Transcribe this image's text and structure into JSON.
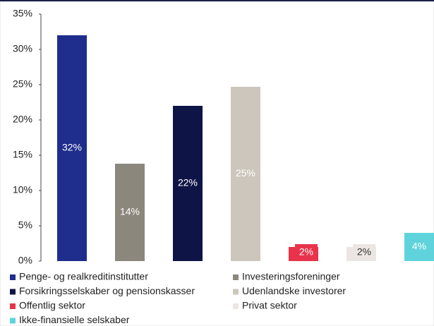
{
  "chart_data": {
    "type": "bar",
    "series": [
      {
        "name": "Penge- og realkreditinstitutter",
        "color": "#1f2d8c",
        "values": [
          32
        ],
        "value_labels": [
          "32%"
        ]
      },
      {
        "name": "Investeringsforeninger",
        "color": "#8c877d",
        "values": [
          13.8
        ],
        "value_labels": [
          "14%"
        ]
      },
      {
        "name": "Forsikringsselskaber og pensionskasser",
        "color": "#0f1446",
        "values": [
          22
        ],
        "value_labels": [
          "22%"
        ]
      },
      {
        "name": "Udenlandske investorer",
        "color": "#cdc6bc",
        "values": [
          24.7
        ],
        "value_labels": [
          "25%"
        ]
      },
      {
        "name": "Offentlig sektor",
        "color": "#e8334a",
        "values": [
          2
        ],
        "value_labels": [
          "2%"
        ]
      },
      {
        "name": "Privat sektor",
        "color": "#ebe6e3",
        "values": [
          2
        ],
        "value_labels": [
          "2%"
        ]
      },
      {
        "name": "Ikke-finansielle selskaber",
        "color": "#5fd3dc",
        "values": [
          4
        ],
        "value_labels": [
          "4%"
        ]
      }
    ],
    "ylim": [
      0,
      35
    ],
    "yticks": [
      {
        "value": 0,
        "label": "0%"
      },
      {
        "value": 5,
        "label": "5%"
      },
      {
        "value": 10,
        "label": "10%"
      },
      {
        "value": 15,
        "label": "15%"
      },
      {
        "value": 20,
        "label": "20%"
      },
      {
        "value": 25,
        "label": "25%"
      },
      {
        "value": 30,
        "label": "30%"
      },
      {
        "value": 35,
        "label": "35%"
      }
    ],
    "legend": "bottom"
  }
}
